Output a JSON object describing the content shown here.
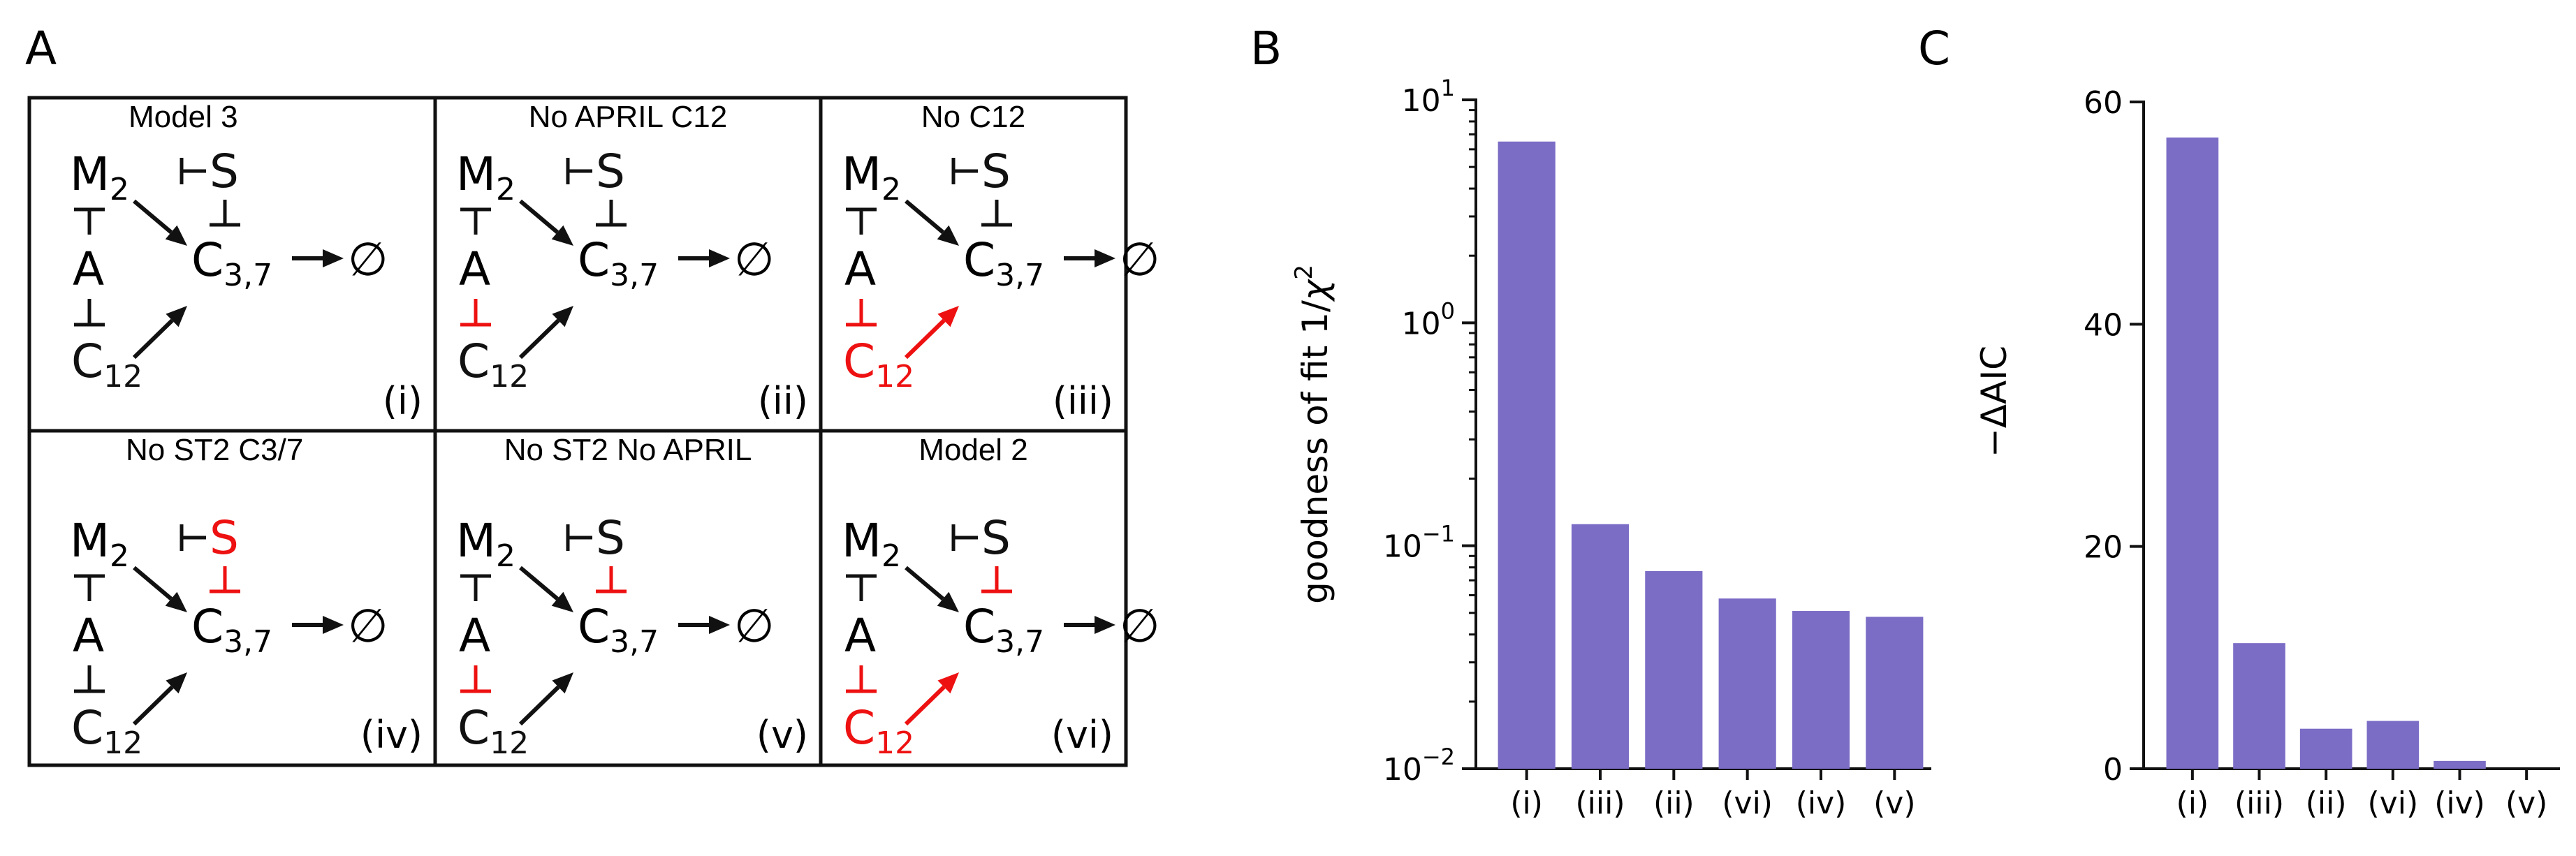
{
  "panel_labels": {
    "a": "A",
    "b": "B",
    "c": "C"
  },
  "colors": {
    "bar": "#7b6cc6",
    "inhibit": "#ee1111",
    "ink": "#111111"
  },
  "models": [
    {
      "title": "Model 3",
      "tag": "(i)",
      "red_inh_A": false,
      "red_c12": false,
      "red_s": false,
      "red_inh_s": false
    },
    {
      "title": "No APRIL C12",
      "tag": "(ii)",
      "red_inh_A": true,
      "red_c12": false,
      "red_s": false,
      "red_inh_s": false
    },
    {
      "title": "No C12",
      "tag": "(iii)",
      "red_inh_A": true,
      "red_c12": true,
      "red_s": false,
      "red_inh_s": false
    },
    {
      "title": "No ST2 C3/7",
      "tag": "(iv)",
      "red_inh_A": false,
      "red_c12": false,
      "red_s": true,
      "red_inh_s": true
    },
    {
      "title": "No ST2 No APRIL",
      "tag": "(v)",
      "red_inh_A": true,
      "red_c12": false,
      "red_s": false,
      "red_inh_s": true
    },
    {
      "title": "Model 2",
      "tag": "(vi)",
      "red_inh_A": true,
      "red_c12": true,
      "red_s": false,
      "red_inh_s": true
    }
  ],
  "nodes": {
    "m": "M",
    "m_sub": "2",
    "s": "S",
    "a": "A",
    "c": "C",
    "c37_sub": "3,7",
    "c12_sub": "12",
    "empty": "∅"
  },
  "chart_data": [
    {
      "type": "bar",
      "panel": "B",
      "categories": [
        "(i)",
        "(iii)",
        "(ii)",
        "(vi)",
        "(iv)",
        "(v)"
      ],
      "values": [
        6.5,
        0.125,
        0.077,
        0.058,
        0.051,
        0.048
      ],
      "yscale": "log",
      "ylim": [
        0.01,
        10
      ],
      "ytick_labels": [
        {
          "base": "10",
          "exp": "−2"
        },
        {
          "base": "10",
          "exp": "−1"
        },
        {
          "base": "10",
          "exp": "0"
        },
        {
          "base": "10",
          "exp": "1"
        }
      ],
      "ylabel_main": "goodness of fit 1/",
      "ylabel_sym": "χ",
      "ylabel_exp": "2",
      "xlabel": ""
    },
    {
      "type": "bar",
      "panel": "C",
      "categories": [
        "(i)",
        "(iii)",
        "(ii)",
        "(vi)",
        "(iv)",
        "(v)"
      ],
      "values": [
        56.8,
        11.3,
        3.6,
        4.3,
        0.7,
        0.0
      ],
      "yscale": "linear",
      "ylim": [
        0,
        60
      ],
      "yticks": [
        0,
        20,
        40,
        60
      ],
      "ylabel": "−ΔAIC",
      "xlabel": ""
    }
  ]
}
